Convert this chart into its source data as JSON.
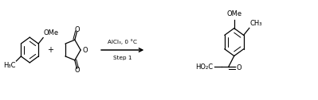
{
  "background_color": "#ffffff",
  "text_color": "#000000",
  "figsize": [
    3.99,
    1.26
  ],
  "dpi": 100,
  "reactant1_H3C": "H₃C",
  "reactant1_OMe": "OMe",
  "plus_sign": "+",
  "anhydride_O_ring": "O",
  "anhydride_O_top": "O",
  "anhydride_O_bot": "O",
  "reagent_line1": "AlCl₃, 0 °C",
  "reagent_line2": "Step 1",
  "product_OMe": "OMe",
  "product_CH3": "CH₃",
  "product_HO2C": "HO₂C",
  "product_O": "O",
  "line_color": "#000000",
  "line_width": 0.9,
  "fs": 6.0,
  "fs_reagent": 5.2
}
